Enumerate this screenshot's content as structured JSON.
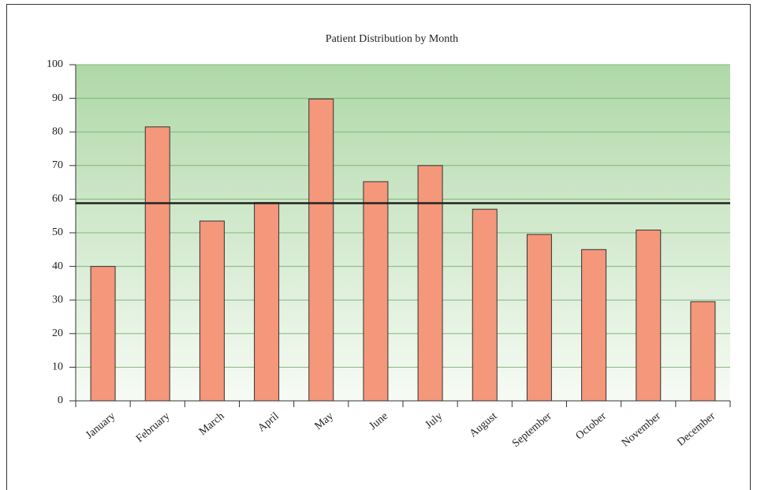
{
  "chart_data": {
    "type": "bar",
    "title": "Patient Distribution by Month",
    "categories": [
      "January",
      "February",
      "March",
      "April",
      "May",
      "June",
      "July",
      "August",
      "September",
      "October",
      "November",
      "December"
    ],
    "values": [
      40,
      81.5,
      53.5,
      59,
      89.8,
      65.2,
      70,
      57,
      49.5,
      45,
      50.8,
      29.5
    ],
    "color": "#f4977a",
    "reference_line": 58.8,
    "ylim": [
      0,
      100
    ],
    "yticks": [
      0,
      10,
      20,
      30,
      40,
      50,
      60,
      70,
      80,
      90,
      100
    ],
    "grid": true
  }
}
